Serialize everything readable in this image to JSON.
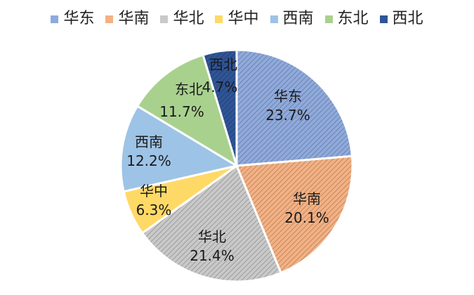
{
  "chart_data": {
    "type": "pie",
    "title": "",
    "legend_position": "top",
    "slices": [
      {
        "name": "华东",
        "value": 23.7,
        "label": "23.7%",
        "color": "#8faadc",
        "pattern": "diagonal-hatch"
      },
      {
        "name": "华南",
        "value": 20.1,
        "label": "20.1%",
        "color": "#f4b183",
        "pattern": "diagonal-hatch"
      },
      {
        "name": "华北",
        "value": 21.4,
        "label": "21.4%",
        "color": "#c9c9c9",
        "pattern": "diagonal-hatch"
      },
      {
        "name": "华中",
        "value": 6.3,
        "label": "6.3%",
        "color": "#ffd966",
        "pattern": "solid"
      },
      {
        "name": "西南",
        "value": 12.2,
        "label": "12.2%",
        "color": "#9dc3e6",
        "pattern": "solid"
      },
      {
        "name": "东北",
        "value": 11.7,
        "label": "11.7%",
        "color": "#a9d18e",
        "pattern": "solid"
      },
      {
        "name": "西北",
        "value": 4.7,
        "label": "4.7%",
        "color": "#2f5597",
        "pattern": "diagonal-hatch"
      }
    ]
  }
}
